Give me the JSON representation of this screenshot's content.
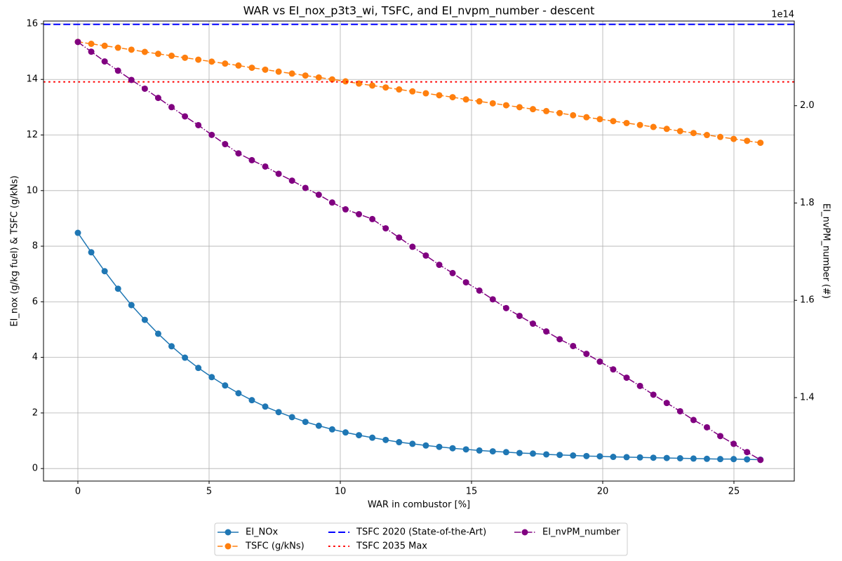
{
  "chart_data": {
    "type": "line",
    "title": "WAR vs EI_nox_p3t3_wi, TSFC, and EI_nvpm_number - descent",
    "xlabel": "WAR in combustor [%]",
    "ylabel": "EI_nox (g/kg fuel) & TSFC (g/kNs)",
    "y2label": "EI_nvPM_number (#)",
    "y2_offset_label": "1e14",
    "x": [
      0,
      0.51,
      1.02,
      1.53,
      2.04,
      2.55,
      3.06,
      3.57,
      4.08,
      4.59,
      5.1,
      5.61,
      6.12,
      6.63,
      7.14,
      7.65,
      8.16,
      8.67,
      9.18,
      9.69,
      10.2,
      10.71,
      11.22,
      11.73,
      12.24,
      12.75,
      13.26,
      13.77,
      14.28,
      14.79,
      15.3,
      15.81,
      16.32,
      16.83,
      17.34,
      17.85,
      18.36,
      18.87,
      19.38,
      19.89,
      20.4,
      20.91,
      21.42,
      21.93,
      22.44,
      22.95,
      23.46,
      23.97,
      24.48,
      24.99,
      25.5,
      26.01
    ],
    "series": [
      {
        "name": "EI_NOx",
        "color": "#1f77b4",
        "linestyle": "solid",
        "marker": "o",
        "values": [
          8.48,
          7.78,
          7.1,
          6.47,
          5.88,
          5.35,
          4.85,
          4.4,
          3.99,
          3.62,
          3.29,
          2.99,
          2.71,
          2.46,
          2.23,
          2.03,
          1.85,
          1.68,
          1.54,
          1.41,
          1.3,
          1.2,
          1.11,
          1.03,
          0.95,
          0.89,
          0.83,
          0.78,
          0.73,
          0.69,
          0.65,
          0.62,
          0.59,
          0.56,
          0.54,
          0.51,
          0.49,
          0.47,
          0.45,
          0.44,
          0.42,
          0.41,
          0.4,
          0.39,
          0.38,
          0.37,
          0.36,
          0.35,
          0.34,
          0.34,
          0.33,
          0.32
        ]
      },
      {
        "name": "TSFC (g/kNs)",
        "color": "#ff7f0e",
        "linestyle": "dashed",
        "marker": "o",
        "values": [
          15.35,
          15.28,
          15.21,
          15.14,
          15.07,
          14.99,
          14.92,
          14.85,
          14.78,
          14.71,
          14.64,
          14.57,
          14.5,
          14.42,
          14.35,
          14.28,
          14.21,
          14.14,
          14.07,
          14.0,
          13.93,
          13.85,
          13.78,
          13.71,
          13.64,
          13.57,
          13.5,
          13.43,
          13.36,
          13.28,
          13.21,
          13.14,
          13.07,
          13.0,
          12.93,
          12.86,
          12.79,
          12.71,
          12.64,
          12.57,
          12.5,
          12.43,
          12.36,
          12.29,
          12.22,
          12.14,
          12.07,
          12.0,
          11.93,
          11.86,
          11.79,
          11.72
        ]
      },
      {
        "name": "TSFC 2020 (State-of-the-Art)",
        "color": "#0000ff",
        "linestyle": "dashed",
        "hline": 15.98
      },
      {
        "name": "TSFC 2035 Max",
        "color": "#ff0000",
        "linestyle": "dotted",
        "hline": 13.91
      },
      {
        "name": "EI_nvPM_number",
        "color": "#800080",
        "linestyle": "dashdot",
        "marker": "o",
        "axis": "y2",
        "values": [
          213100000000000.0,
          211100000000000.0,
          209100000000000.0,
          207200000000000.0,
          205300000000000.0,
          203500000000000.0,
          201600000000000.0,
          199700000000000.0,
          197800000000000.0,
          196000000000000.0,
          194000000000000.0,
          192100000000000.0,
          190200000000000.0,
          188800000000000.0,
          187500000000000.0,
          186000000000000.0,
          184600000000000.0,
          183100000000000.0,
          181700000000000.0,
          180100000000000.0,
          178700000000000.0,
          177700000000000.0,
          176700000000000.0,
          174800000000000.0,
          172900000000000.0,
          171000000000000.0,
          169200000000000.0,
          167300000000000.0,
          165600000000000.0,
          163700000000000.0,
          162000000000000.0,
          160200000000000.0,
          158400000000000.0,
          156800000000000.0,
          155200000000000.0,
          153600000000000.0,
          152000000000000.0,
          150600000000000.0,
          149000000000000.0,
          147400000000000.0,
          145800000000000.0,
          144100000000000.0,
          142400000000000.0,
          140600000000000.0,
          138900000000000.0,
          137200000000000.0,
          135400000000000.0,
          133900000000000.0,
          132100000000000.0,
          130500000000000.0,
          128800000000000.0,
          127200000000000.0
        ]
      }
    ],
    "xlim": [
      -1.31,
      27.3
    ],
    "xticks": [
      0,
      5,
      10,
      15,
      20,
      25
    ],
    "ylim": [
      -0.45,
      16.1
    ],
    "yticks": [
      0,
      2,
      4,
      6,
      8,
      10,
      12,
      14,
      16
    ],
    "y2lim": [
      122850000000000.0,
      217400000000000.0
    ],
    "y2ticks": [
      {
        "value": 140000000000000.0,
        "label": "1.4"
      },
      {
        "value": 160000000000000.0,
        "label": "1.6"
      },
      {
        "value": 180000000000000.0,
        "label": "1.8"
      },
      {
        "value": 200000000000000.0,
        "label": "2.0"
      }
    ],
    "grid": true,
    "legend": "lower center"
  }
}
